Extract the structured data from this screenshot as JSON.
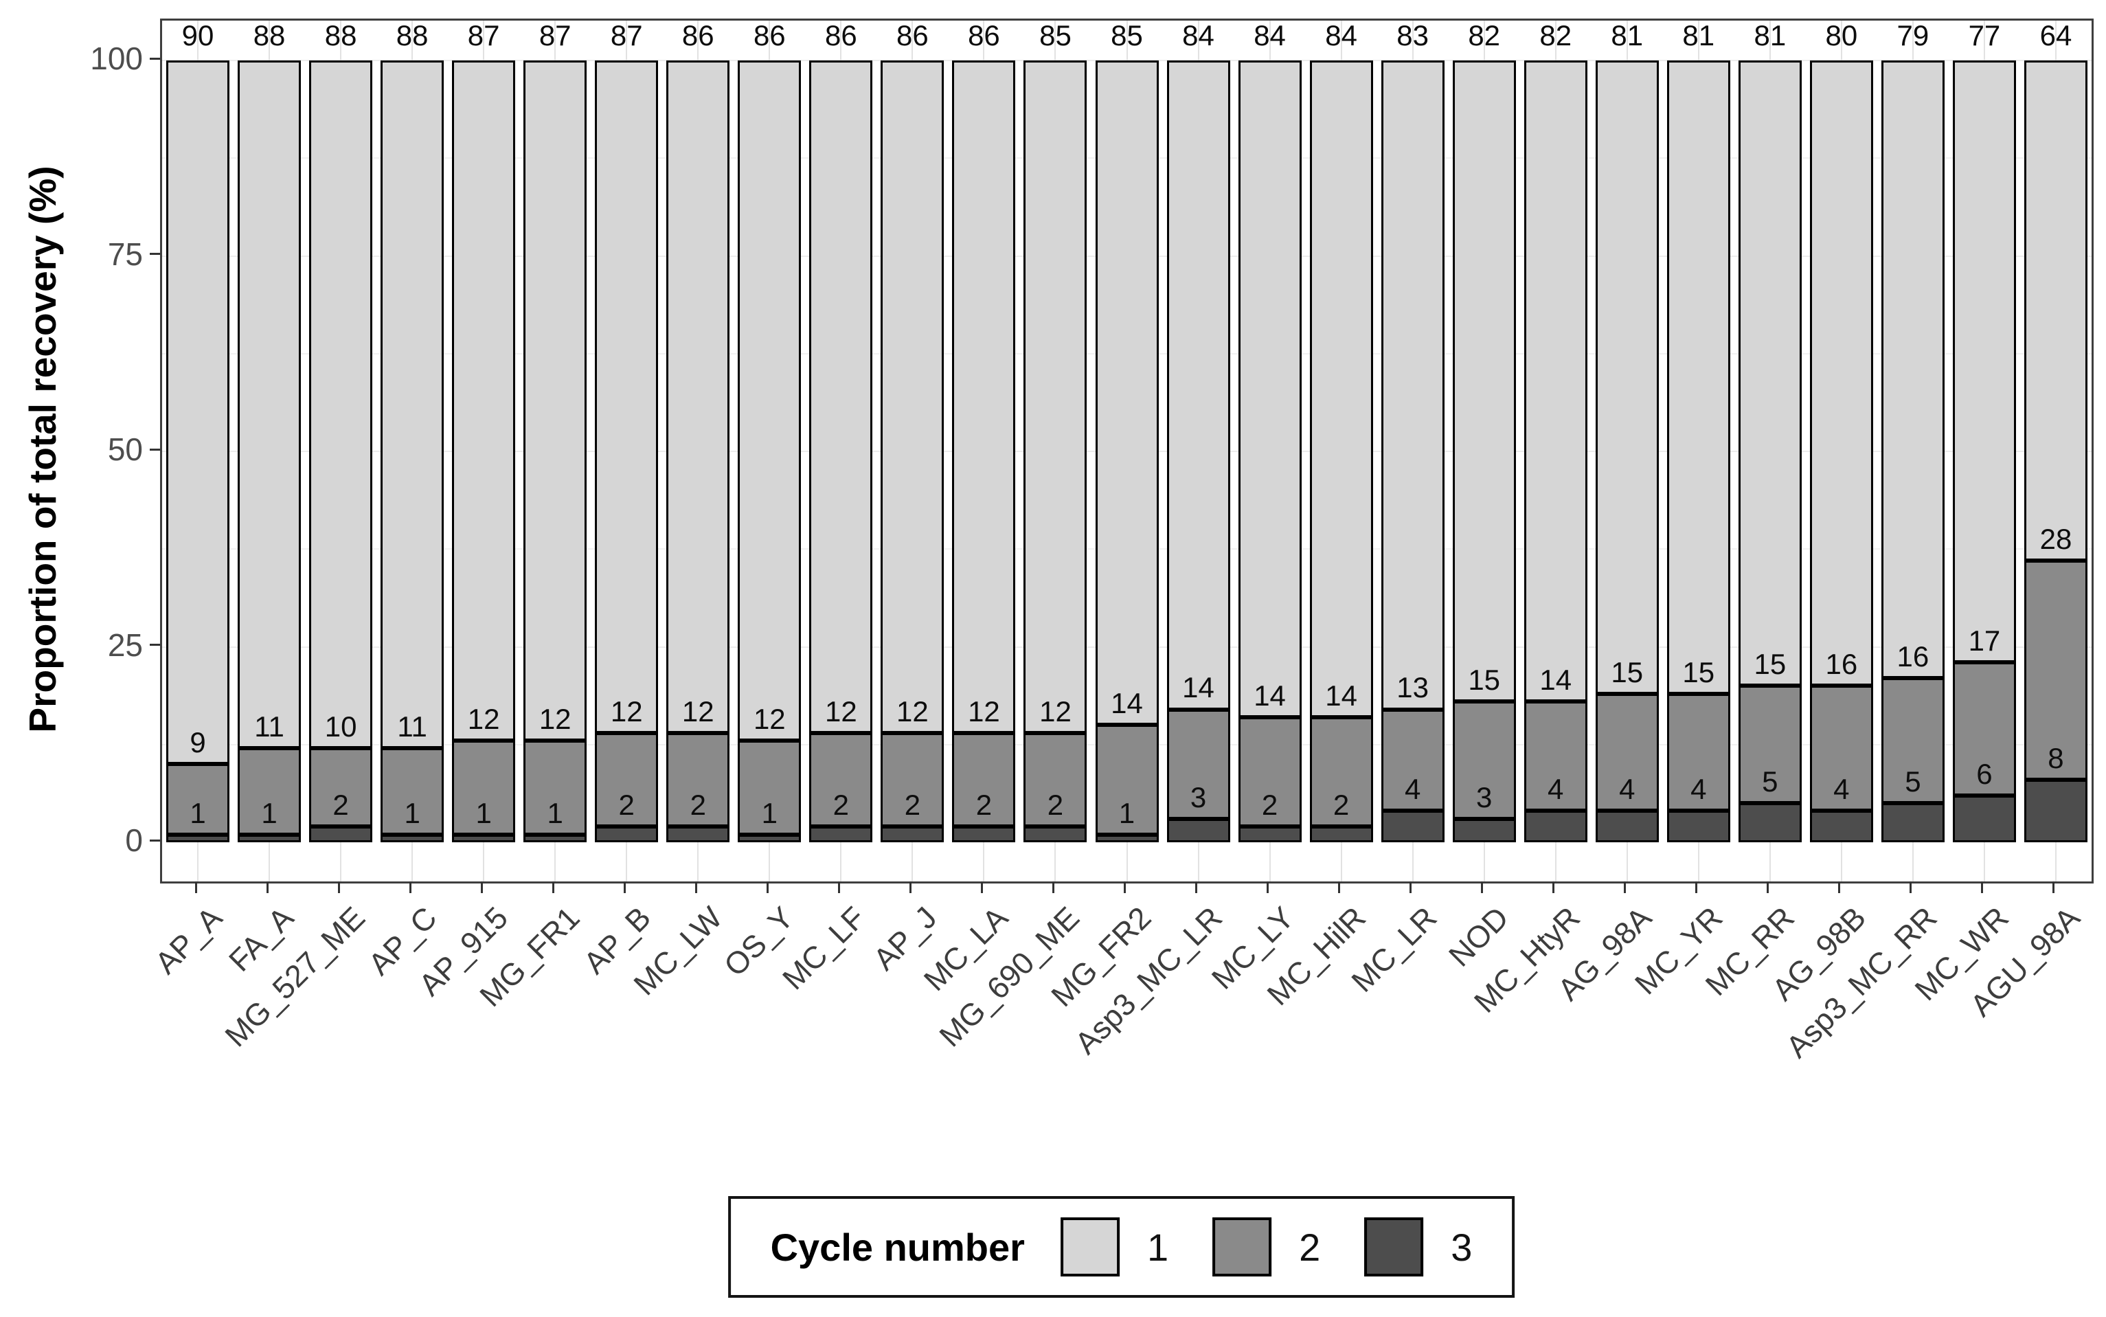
{
  "chart_data": {
    "type": "bar",
    "subtype": "stacked-percentage",
    "title": "",
    "xlabel": "",
    "ylabel": "Proportion of total recovery (%)",
    "ylim": [
      0,
      100
    ],
    "yticks": [
      "0",
      "25",
      "50",
      "75",
      "100"
    ],
    "ytick_values": [
      0,
      25,
      50,
      75,
      100
    ],
    "minor_ytick_values": [
      12.5,
      37.5,
      62.5,
      87.5
    ],
    "grid": "light vertical line per category, light horizontal major/minor lines",
    "bar_outline_color": "#000000",
    "categories": [
      "AP_A",
      "FA_A",
      "MG_527_ME",
      "AP_C",
      "AP_915",
      "MG_FR1",
      "AP_B",
      "MC_LW",
      "OS_Y",
      "MC_LF",
      "AP_J",
      "MC_LA",
      "MG_690_ME",
      "MG_FR2",
      "Asp3_MC_LR",
      "MC_LY",
      "MC_HilR",
      "MC_LR",
      "NOD",
      "MC_HtyR",
      "AG_98A",
      "MC_YR",
      "MC_RR",
      "AG_98B",
      "Asp3_MC_RR",
      "MC_WR",
      "AGU_98A"
    ],
    "series": [
      {
        "name": "1",
        "color": "#d6d6d6",
        "values": [
          90,
          88,
          88,
          88,
          87,
          87,
          87,
          86,
          86,
          86,
          86,
          86,
          85,
          85,
          84,
          84,
          84,
          83,
          82,
          82,
          81,
          81,
          81,
          80,
          79,
          77,
          64
        ]
      },
      {
        "name": "2",
        "color": "#8a8a8a",
        "values": [
          9,
          11,
          10,
          11,
          12,
          12,
          12,
          12,
          12,
          12,
          12,
          12,
          12,
          14,
          14,
          14,
          14,
          13,
          15,
          14,
          15,
          15,
          15,
          16,
          16,
          17,
          28
        ]
      },
      {
        "name": "3",
        "color": "#4d4d4d",
        "values": [
          1,
          1,
          2,
          1,
          1,
          1,
          2,
          2,
          1,
          2,
          2,
          2,
          2,
          1,
          3,
          2,
          2,
          4,
          3,
          4,
          4,
          4,
          5,
          4,
          5,
          6,
          8
        ]
      }
    ],
    "legend": {
      "title": "Cycle number",
      "position": "bottom-center",
      "entries": [
        {
          "label": "1",
          "color": "#d6d6d6"
        },
        {
          "label": "2",
          "color": "#8a8a8a"
        },
        {
          "label": "3",
          "color": "#4d4d4d"
        }
      ]
    }
  }
}
